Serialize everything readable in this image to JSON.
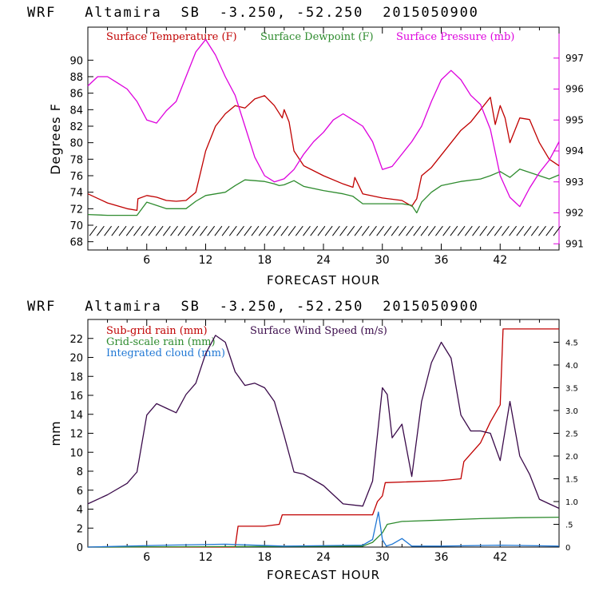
{
  "colors": {
    "temperature": "#c00000",
    "dewpoint": "#2e8b2e",
    "pressure": "#dd00dd",
    "subgrid_rain": "#c00000",
    "gridscale_rain": "#2e8b2e",
    "cloud": "#1f77d4",
    "wind_speed": "#3a0a4a",
    "axis": "#000000",
    "wind_barbs": "#000000"
  },
  "chart_data": [
    {
      "type": "line",
      "title": "WRF   Altamira  SB  -3.250, -52.250  2015050900",
      "xlabel": "FORECAST HOUR",
      "ylabel": "Degrees F",
      "xlim": [
        0,
        48
      ],
      "ylim": [
        67,
        94
      ],
      "y2lim": [
        990.8,
        998.0
      ],
      "x_ticks": [
        6,
        12,
        18,
        24,
        30,
        36,
        42
      ],
      "x_tick_labels": [
        "6",
        "12",
        "18",
        "24",
        "30",
        "36",
        "42"
      ],
      "y_ticks": [
        68,
        70,
        72,
        74,
        76,
        78,
        80,
        82,
        84,
        86,
        88,
        90
      ],
      "y_tick_labels": [
        "68",
        "70",
        "72",
        "74",
        "76",
        "78",
        "80",
        "82",
        "84",
        "86",
        "88",
        "90"
      ],
      "y2_ticks": [
        991,
        992,
        993,
        994,
        995,
        996,
        997
      ],
      "y2_tick_labels": [
        "991",
        "992",
        "993",
        "994",
        "995",
        "996",
        "997"
      ],
      "legend": [
        "Surface Temperature (F)",
        "Surface Dewpoint (F)",
        "Surface Pressure (mb)"
      ],
      "series": [
        {
          "name": "Surface Temperature (F)",
          "axis": "left",
          "x": [
            0,
            2,
            4,
            5,
            5.1,
            6,
            7,
            8,
            9,
            10,
            11,
            12,
            13,
            14,
            15,
            16,
            17,
            18,
            19,
            19.8,
            20,
            20.5,
            21,
            22,
            24,
            26,
            27,
            27.2,
            28,
            30,
            32,
            33,
            33.5,
            34,
            35,
            36,
            37,
            38,
            39,
            40,
            41,
            41.5,
            42,
            42.5,
            43,
            44,
            45,
            46,
            47,
            48
          ],
          "values": [
            73.8,
            72.7,
            72.0,
            71.8,
            73.2,
            73.6,
            73.4,
            73.0,
            72.9,
            73.0,
            74.0,
            79.0,
            82.0,
            83.5,
            84.5,
            84.2,
            85.3,
            85.7,
            84.5,
            83.0,
            84.0,
            82.5,
            79.0,
            77.2,
            76.0,
            75.0,
            74.6,
            75.8,
            73.8,
            73.3,
            73.0,
            72.3,
            73.2,
            76.0,
            77.0,
            78.5,
            80.0,
            81.5,
            82.5,
            84.0,
            85.5,
            82.2,
            84.5,
            83.0,
            80.0,
            83.0,
            82.8,
            80.0,
            78.0,
            77.2
          ]
        },
        {
          "name": "Surface Dewpoint (F)",
          "axis": "left",
          "x": [
            0,
            2,
            4,
            5,
            6,
            8,
            10,
            11,
            12,
            14,
            15,
            16,
            17,
            18,
            19,
            19.5,
            20,
            21,
            22,
            24,
            26,
            27,
            28,
            30,
            32,
            33,
            33.5,
            34,
            35,
            36,
            38,
            40,
            41,
            42,
            43,
            44,
            45,
            46,
            47,
            48
          ],
          "values": [
            71.3,
            71.2,
            71.2,
            71.2,
            72.8,
            72.0,
            72.0,
            72.9,
            73.6,
            74.0,
            74.8,
            75.5,
            75.4,
            75.3,
            75.0,
            74.8,
            74.9,
            75.4,
            74.7,
            74.2,
            73.8,
            73.5,
            72.6,
            72.6,
            72.6,
            72.4,
            71.5,
            72.8,
            74.0,
            74.8,
            75.3,
            75.6,
            76.0,
            76.5,
            75.8,
            76.8,
            76.4,
            76.0,
            75.6,
            76.1
          ]
        },
        {
          "name": "Surface Pressure (mb)",
          "axis": "right",
          "x": [
            0,
            1,
            2,
            3,
            4,
            5,
            6,
            7,
            8,
            9,
            10,
            11,
            12,
            13,
            14,
            15,
            16,
            17,
            18,
            19,
            20,
            21,
            22,
            23,
            24,
            25,
            26,
            27,
            28,
            29,
            30,
            31,
            32,
            33,
            34,
            35,
            36,
            37,
            38,
            39,
            40,
            41,
            42,
            43,
            44,
            45,
            46,
            47,
            48
          ],
          "values": [
            996.1,
            996.4,
            996.4,
            996.2,
            996.0,
            995.6,
            995.0,
            994.9,
            995.3,
            995.6,
            996.4,
            997.2,
            997.6,
            997.1,
            996.4,
            995.8,
            994.8,
            993.8,
            993.2,
            993.0,
            993.1,
            993.4,
            993.9,
            994.3,
            994.6,
            995.0,
            995.2,
            995.0,
            994.8,
            994.3,
            993.4,
            993.5,
            993.9,
            994.3,
            994.8,
            995.6,
            996.3,
            996.6,
            996.3,
            995.8,
            995.5,
            994.7,
            993.2,
            992.5,
            992.2,
            992.8,
            993.3,
            993.7,
            994.3
          ]
        }
      ]
    },
    {
      "type": "line",
      "title": "WRF   Altamira  SB  -3.250, -52.250  2015050900",
      "xlabel": "FORECAST HOUR",
      "ylabel": "mm",
      "xlim": [
        0,
        48
      ],
      "ylim": [
        0,
        24
      ],
      "y2lim": [
        0,
        5.0
      ],
      "x_ticks": [
        6,
        12,
        18,
        24,
        30,
        36,
        42
      ],
      "x_tick_labels": [
        "6",
        "12",
        "18",
        "24",
        "30",
        "36",
        "42"
      ],
      "y_ticks": [
        0,
        2,
        4,
        6,
        8,
        10,
        12,
        14,
        16,
        18,
        20,
        22
      ],
      "y_tick_labels": [
        "0",
        "2",
        "4",
        "6",
        "8",
        "10",
        "12",
        "14",
        "16",
        "18",
        "20",
        "22"
      ],
      "y2_ticks": [
        0,
        0.5,
        1.0,
        1.5,
        2.0,
        2.5,
        3.0,
        3.5,
        4.0,
        4.5
      ],
      "y2_tick_labels": [
        "0",
        ".5",
        "1.0",
        "1.5",
        "2.0",
        "2.5",
        "3.0",
        "3.5",
        "4.0",
        "4.5"
      ],
      "legend": [
        "Sub-grid rain (mm)",
        "Surface Wind Speed (m/s)",
        "Grid-scale rain (mm)",
        "Integrated cloud (mm)"
      ],
      "series": [
        {
          "name": "Sub-grid rain (mm)",
          "axis": "left",
          "x": [
            0,
            15,
            15.3,
            18,
            19.5,
            19.8,
            29,
            29.5,
            30,
            30.3,
            36,
            38,
            38.3,
            40,
            41,
            42,
            42.3,
            48
          ],
          "values": [
            0,
            0,
            2.2,
            2.2,
            2.4,
            3.4,
            3.4,
            4.8,
            5.4,
            6.8,
            7.0,
            7.2,
            9.0,
            11.0,
            13.2,
            15.0,
            23.0,
            23.0
          ]
        },
        {
          "name": "Grid-scale rain (mm)",
          "axis": "left",
          "x": [
            0,
            28,
            29,
            30,
            30.5,
            32,
            36,
            40,
            44,
            48
          ],
          "values": [
            0,
            0.1,
            0.5,
            1.5,
            2.4,
            2.7,
            2.85,
            3.0,
            3.1,
            3.15
          ]
        },
        {
          "name": "Integrated cloud (mm)",
          "axis": "left",
          "x": [
            0,
            8,
            14,
            20,
            28,
            29,
            29.6,
            30,
            30.4,
            31,
            32,
            33,
            36,
            42,
            48
          ],
          "values": [
            0,
            0.2,
            0.3,
            0.1,
            0.2,
            0.8,
            3.7,
            0.8,
            0.1,
            0.3,
            0.9,
            0.1,
            0.1,
            0.2,
            0.1
          ]
        },
        {
          "name": "Surface Wind Speed (m/s)",
          "axis": "right",
          "x": [
            0,
            2,
            4,
            5,
            6,
            7,
            8,
            9,
            10,
            11,
            12,
            13,
            14,
            15,
            16,
            17,
            18,
            19,
            20,
            21,
            22,
            24,
            26,
            28,
            29,
            30,
            30.5,
            31,
            32,
            33,
            34,
            35,
            36,
            37,
            38,
            39,
            40,
            41,
            42,
            43,
            44,
            45,
            46,
            47,
            48
          ],
          "values": [
            0.95,
            1.15,
            1.4,
            1.65,
            2.9,
            3.15,
            3.05,
            2.95,
            3.35,
            3.6,
            4.25,
            4.65,
            4.5,
            3.85,
            3.55,
            3.6,
            3.5,
            3.2,
            2.45,
            1.65,
            1.6,
            1.35,
            0.95,
            0.9,
            1.45,
            3.5,
            3.35,
            2.4,
            2.7,
            1.55,
            3.2,
            4.05,
            4.5,
            4.15,
            2.9,
            2.55,
            2.55,
            2.5,
            1.9,
            3.2,
            2.0,
            1.6,
            1.05,
            0.95,
            0.85
          ]
        }
      ]
    }
  ]
}
